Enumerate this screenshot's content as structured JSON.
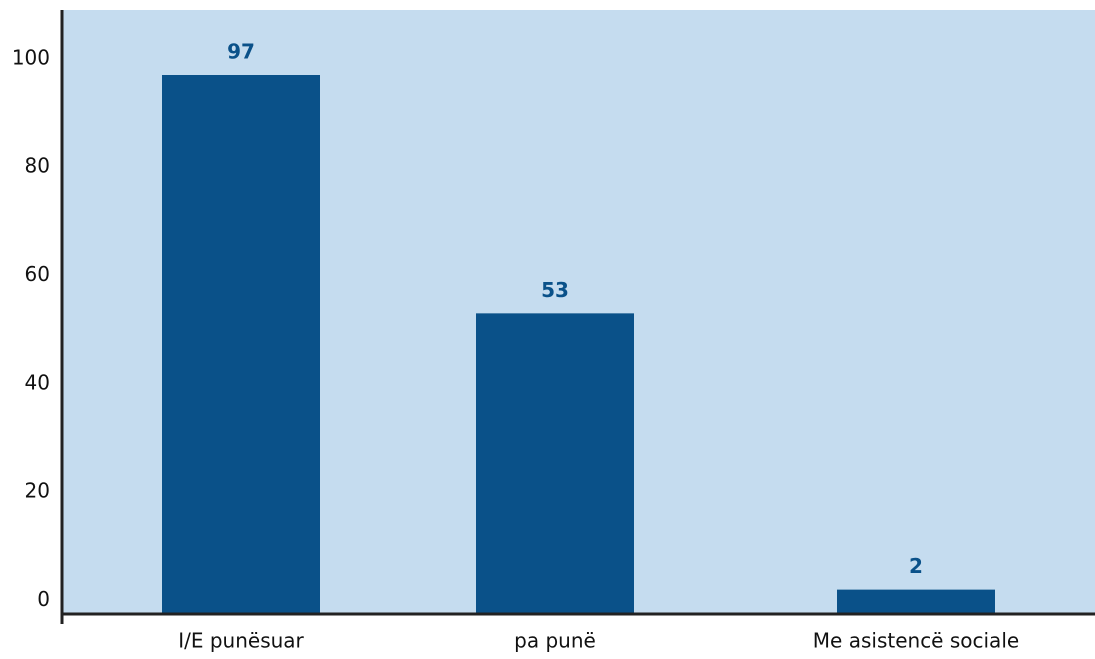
{
  "chart_data": {
    "type": "bar",
    "categories": [
      "I/E punësuar",
      "pa punë",
      "Me asistencë sociale"
    ],
    "values": [
      97,
      53,
      2
    ],
    "color": "#0a5189",
    "background": "#c5dcef",
    "ylim": [
      -2.5,
      109
    ],
    "yticks": [
      0,
      20,
      40,
      60,
      80,
      100
    ],
    "grid": false
  }
}
